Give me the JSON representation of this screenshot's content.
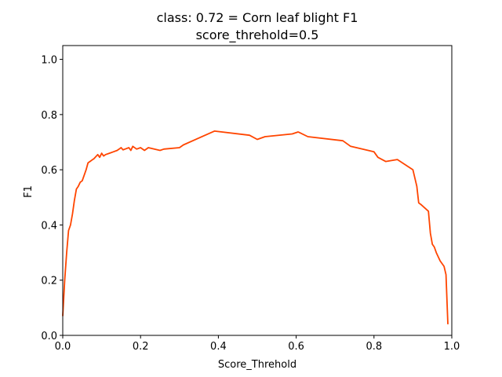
{
  "chart_data": {
    "type": "line",
    "title": "class: 0.72 = Corn leaf blight F1",
    "subtitle": "score_threhold=0.5",
    "xlabel": "Score_Threhold",
    "ylabel": "F1",
    "xlim": [
      0.0,
      1.0
    ],
    "ylim": [
      0.0,
      1.05
    ],
    "xticks": [
      "0.0",
      "0.2",
      "0.4",
      "0.6",
      "0.8",
      "1.0"
    ],
    "yticks": [
      "0.0",
      "0.2",
      "0.4",
      "0.6",
      "0.8",
      "1.0"
    ],
    "grid": false,
    "line_color": "#ff4500",
    "series": [
      {
        "x": [
          0.0,
          0.005,
          0.01,
          0.015,
          0.02,
          0.025,
          0.03,
          0.035,
          0.04,
          0.045,
          0.05,
          0.055,
          0.06,
          0.065,
          0.07,
          0.075,
          0.08,
          0.09,
          0.095,
          0.1,
          0.105,
          0.11,
          0.12,
          0.13,
          0.14,
          0.145,
          0.15,
          0.155,
          0.16,
          0.17,
          0.175,
          0.18,
          0.19,
          0.2,
          0.21,
          0.22,
          0.25,
          0.26,
          0.3,
          0.31,
          0.35,
          0.39,
          0.48,
          0.5,
          0.52,
          0.59,
          0.605,
          0.63,
          0.72,
          0.74,
          0.8,
          0.81,
          0.83,
          0.86,
          0.9,
          0.91,
          0.915,
          0.92,
          0.94,
          0.945,
          0.95,
          0.955,
          0.96,
          0.97,
          0.98,
          0.985,
          0.99
        ],
        "y": [
          0.07,
          0.2,
          0.3,
          0.38,
          0.4,
          0.44,
          0.49,
          0.53,
          0.54,
          0.555,
          0.56,
          0.58,
          0.6,
          0.625,
          0.63,
          0.635,
          0.64,
          0.655,
          0.645,
          0.66,
          0.65,
          0.655,
          0.66,
          0.665,
          0.67,
          0.675,
          0.68,
          0.672,
          0.675,
          0.68,
          0.67,
          0.685,
          0.675,
          0.68,
          0.67,
          0.68,
          0.67,
          0.675,
          0.68,
          0.69,
          0.715,
          0.74,
          0.725,
          0.71,
          0.72,
          0.73,
          0.737,
          0.72,
          0.705,
          0.685,
          0.665,
          0.645,
          0.63,
          0.637,
          0.6,
          0.54,
          0.48,
          0.475,
          0.45,
          0.37,
          0.33,
          0.32,
          0.3,
          0.27,
          0.25,
          0.22,
          0.04
        ]
      }
    ]
  }
}
